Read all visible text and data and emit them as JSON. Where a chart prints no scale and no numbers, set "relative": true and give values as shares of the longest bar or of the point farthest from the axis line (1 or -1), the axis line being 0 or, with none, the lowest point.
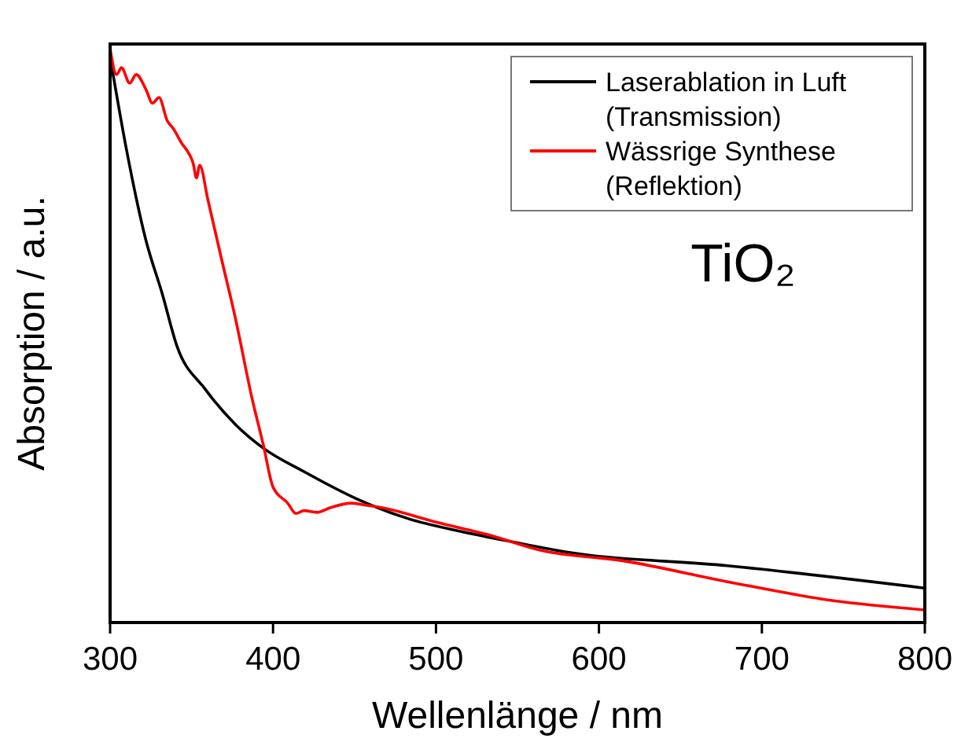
{
  "chart_data": {
    "type": "line",
    "relative": true,
    "xlabel": "Wellenlänge / nm",
    "ylabel": "Absorption / a.u.",
    "xlim": [
      300,
      800
    ],
    "xticks": [
      300,
      400,
      500,
      600,
      700,
      800
    ],
    "legend": "top right",
    "grid": false,
    "marker": "none",
    "line_style": "solid",
    "annotations": [
      "TiO₂"
    ],
    "series": [
      {
        "name": "Laserablation in Luft\n(Transmission)",
        "color": "#000000",
        "x": [
          300,
          310,
          322,
          332,
          341,
          358,
          377,
          394,
          419,
          451,
          483,
          515,
          548,
          580,
          679,
          800
        ],
        "values": [
          0.986,
          0.825,
          0.666,
          0.573,
          0.482,
          0.408,
          0.345,
          0.304,
          0.263,
          0.216,
          0.181,
          0.159,
          0.14,
          0.123,
          0.099,
          0.06
        ]
      },
      {
        "name": "Wässrige Synthese\n(Reflektion)",
        "color": "#ff0000",
        "x": [
          300,
          304,
          307,
          312,
          316,
          322,
          326,
          330,
          335,
          339,
          344,
          348,
          351,
          353,
          355,
          360,
          368,
          377,
          387,
          394,
          400,
          409,
          414,
          419,
          427,
          435,
          448,
          458,
          467,
          500,
          532,
          564,
          616,
          679,
          744,
          800
        ],
        "values": [
          1.0,
          0.955,
          0.967,
          0.94,
          0.955,
          0.929,
          0.905,
          0.915,
          0.875,
          0.86,
          0.835,
          0.819,
          0.8,
          0.775,
          0.797,
          0.737,
          0.638,
          0.529,
          0.392,
          0.31,
          0.236,
          0.208,
          0.19,
          0.195,
          0.192,
          0.2,
          0.208,
          0.204,
          0.2,
          0.175,
          0.153,
          0.126,
          0.107,
          0.071,
          0.038,
          0.022
        ]
      }
    ]
  }
}
